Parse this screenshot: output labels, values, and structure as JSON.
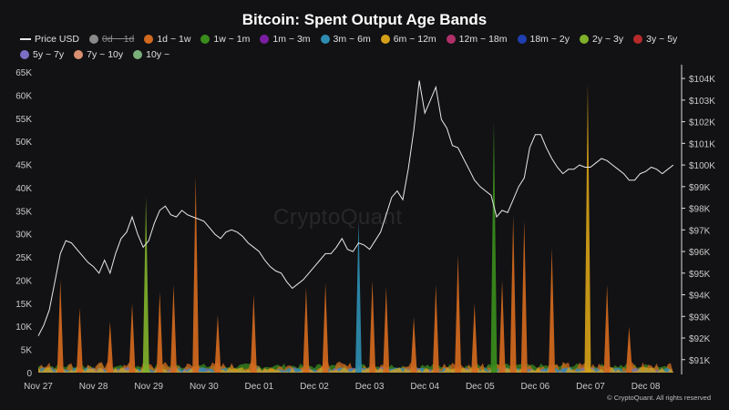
{
  "chart_data": {
    "type": "area",
    "title": "Bitcoin: Spent Output Age Bands",
    "watermark": "CryptoQuant",
    "copyright": "© CryptoQuant. All rights reserved",
    "x_ticks": [
      "Nov 27",
      "Nov 28",
      "Nov 29",
      "Nov 30",
      "Dec 01",
      "Dec 02",
      "Dec 03",
      "Dec 04",
      "Dec 05",
      "Dec 06",
      "Dec 07",
      "Dec 08"
    ],
    "y_left_ticks": [
      "0",
      "5K",
      "10K",
      "15K",
      "20K",
      "25K",
      "30K",
      "35K",
      "40K",
      "45K",
      "50K",
      "55K",
      "60K",
      "65K"
    ],
    "y_right_ticks": [
      "$91K",
      "$92K",
      "$93K",
      "$94K",
      "$95K",
      "$96K",
      "$97K",
      "$98K",
      "$99K",
      "$100K",
      "$101K",
      "$102K",
      "$103K",
      "$104K"
    ],
    "ylim_left": [
      0,
      65000
    ],
    "ylim_right": [
      90400,
      104300
    ],
    "grid": false,
    "legend_position": "top",
    "legend": [
      {
        "name": "Price USD",
        "color": "#e8e8e8",
        "kind": "line",
        "visible": true
      },
      {
        "name": "0d ~ 1d",
        "color": "#9e9e9e",
        "kind": "area",
        "visible": false
      },
      {
        "name": "1d ~ 1w",
        "color": "#d2691e",
        "kind": "area",
        "visible": true
      },
      {
        "name": "1w ~ 1m",
        "color": "#3a8c1c",
        "kind": "area",
        "visible": true
      },
      {
        "name": "1m ~ 3m",
        "color": "#7b1fa2",
        "kind": "area",
        "visible": true
      },
      {
        "name": "3m ~ 6m",
        "color": "#2e8cb0",
        "kind": "area",
        "visible": true
      },
      {
        "name": "6m ~ 12m",
        "color": "#d4a017",
        "kind": "area",
        "visible": true
      },
      {
        "name": "12m ~ 18m",
        "color": "#b0306a",
        "kind": "area",
        "visible": true
      },
      {
        "name": "18m ~ 2y",
        "color": "#1f3fb0",
        "kind": "area",
        "visible": true
      },
      {
        "name": "2y ~ 3y",
        "color": "#7fb02a",
        "kind": "area",
        "visible": true
      },
      {
        "name": "3y ~ 5y",
        "color": "#b72a2a",
        "kind": "area",
        "visible": true
      },
      {
        "name": "5y ~ 7y",
        "color": "#7a6fc4",
        "kind": "area",
        "visible": true
      },
      {
        "name": "7y ~ 10y",
        "color": "#d99070",
        "kind": "area",
        "visible": true
      },
      {
        "name": "10y ~",
        "color": "#7ab07a",
        "kind": "area",
        "visible": true
      }
    ],
    "price_usd": {
      "x": [
        0.0,
        0.1,
        0.2,
        0.3,
        0.4,
        0.5,
        0.6,
        0.7,
        0.8,
        0.9,
        1.0,
        1.1,
        1.2,
        1.3,
        1.4,
        1.5,
        1.6,
        1.7,
        1.8,
        1.9,
        2.0,
        2.1,
        2.2,
        2.3,
        2.4,
        2.5,
        2.6,
        2.7,
        2.8,
        2.9,
        3.0,
        3.1,
        3.2,
        3.3,
        3.4,
        3.5,
        3.6,
        3.7,
        3.8,
        3.9,
        4.0,
        4.1,
        4.2,
        4.3,
        4.4,
        4.5,
        4.6,
        4.7,
        4.8,
        4.9,
        5.0,
        5.1,
        5.2,
        5.3,
        5.4,
        5.5,
        5.6,
        5.7,
        5.8,
        5.9,
        6.0,
        6.1,
        6.2,
        6.3,
        6.4,
        6.5,
        6.6,
        6.7,
        6.8,
        6.9,
        7.0,
        7.1,
        7.2,
        7.3,
        7.4,
        7.5,
        7.6,
        7.7,
        7.8,
        7.9,
        8.0,
        8.1,
        8.2,
        8.3,
        8.4,
        8.5,
        8.6,
        8.7,
        8.8,
        8.9,
        9.0,
        9.1,
        9.2,
        9.3,
        9.4,
        9.5,
        9.6,
        9.7,
        9.8,
        9.9,
        10.0,
        10.1,
        10.2,
        10.3,
        10.4,
        10.5,
        10.6,
        10.7,
        10.8,
        10.9,
        11.0,
        11.1,
        11.2,
        11.3,
        11.4,
        11.5
      ],
      "y": [
        92100,
        92600,
        93300,
        94600,
        95900,
        96500,
        96400,
        96100,
        95800,
        95500,
        95300,
        95000,
        95600,
        95000,
        95900,
        96600,
        96900,
        97600,
        96800,
        96200,
        96500,
        97300,
        97900,
        98100,
        97700,
        97600,
        97900,
        97700,
        97600,
        97500,
        97400,
        97100,
        96800,
        96600,
        96900,
        97000,
        96900,
        96700,
        96400,
        96200,
        96000,
        95600,
        95300,
        95100,
        95000,
        94600,
        94300,
        94500,
        94700,
        95000,
        95300,
        95600,
        95900,
        95900,
        96200,
        96600,
        96100,
        96000,
        96400,
        96300,
        96100,
        96500,
        96900,
        97700,
        98500,
        98800,
        98400,
        99800,
        101600,
        103900,
        102400,
        103000,
        103600,
        102100,
        101700,
        100900,
        100800,
        100300,
        99800,
        99300,
        99000,
        98800,
        98600,
        97600,
        97900,
        97800,
        98400,
        99000,
        99400,
        100800,
        101400,
        101400,
        100800,
        100300,
        99900,
        99600,
        99800,
        99800,
        100000,
        99900,
        99900,
        100100,
        100300,
        100200,
        100000,
        99800,
        99600,
        99300,
        99300,
        99600,
        99700,
        99900,
        99800,
        99600,
        99800,
        100000
      ]
    },
    "spikes": [
      {
        "name": "1d ~ 1w",
        "x": 0.4,
        "y": 20000
      },
      {
        "name": "1d ~ 1w",
        "x": 0.75,
        "y": 14000
      },
      {
        "name": "1d ~ 1w",
        "x": 1.3,
        "y": 11000
      },
      {
        "name": "1d ~ 1w",
        "x": 1.7,
        "y": 15000
      },
      {
        "name": "2y ~ 3y",
        "x": 1.95,
        "y": 38000
      },
      {
        "name": "1d ~ 1w",
        "x": 2.2,
        "y": 17500
      },
      {
        "name": "1d ~ 1w",
        "x": 2.45,
        "y": 19000
      },
      {
        "name": "1d ~ 1w",
        "x": 2.85,
        "y": 42500
      },
      {
        "name": "1d ~ 1w",
        "x": 3.25,
        "y": 12500
      },
      {
        "name": "1d ~ 1w",
        "x": 3.9,
        "y": 17000
      },
      {
        "name": "1d ~ 1w",
        "x": 4.85,
        "y": 18500
      },
      {
        "name": "1d ~ 1w",
        "x": 5.2,
        "y": 19500
      },
      {
        "name": "3m ~ 6m",
        "x": 5.8,
        "y": 33000
      },
      {
        "name": "1d ~ 1w",
        "x": 6.05,
        "y": 20000
      },
      {
        "name": "1d ~ 1w",
        "x": 6.3,
        "y": 18500
      },
      {
        "name": "1d ~ 1w",
        "x": 6.8,
        "y": 12000
      },
      {
        "name": "1d ~ 1w",
        "x": 7.2,
        "y": 19000
      },
      {
        "name": "1d ~ 1w",
        "x": 7.6,
        "y": 25500
      },
      {
        "name": "1d ~ 1w",
        "x": 7.9,
        "y": 15000
      },
      {
        "name": "1w ~ 1m",
        "x": 8.25,
        "y": 54500
      },
      {
        "name": "1d ~ 1w",
        "x": 8.4,
        "y": 20000
      },
      {
        "name": "1d ~ 1w",
        "x": 8.6,
        "y": 34000
      },
      {
        "name": "1d ~ 1w",
        "x": 8.8,
        "y": 33000
      },
      {
        "name": "1d ~ 1w",
        "x": 9.3,
        "y": 27000
      },
      {
        "name": "6m ~ 12m",
        "x": 9.95,
        "y": 62500
      },
      {
        "name": "1d ~ 1w",
        "x": 10.3,
        "y": 19000
      },
      {
        "name": "1d ~ 1w",
        "x": 10.7,
        "y": 10000
      }
    ]
  }
}
